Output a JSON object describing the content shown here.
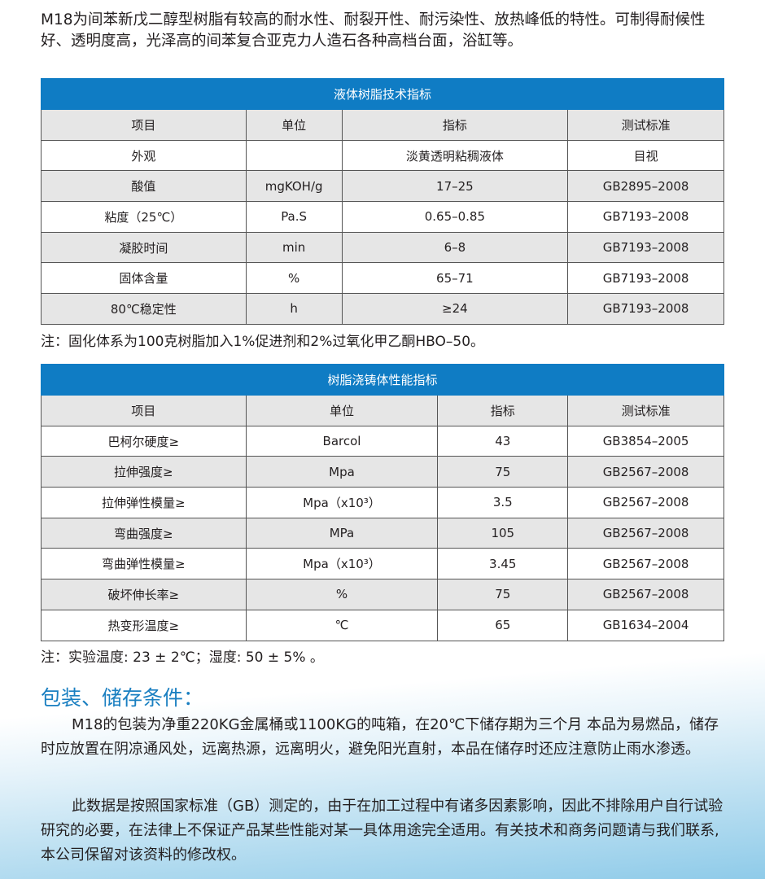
{
  "intro": "M18为间苯新戊二醇型树脂有较高的耐水性、耐裂开性、耐污染性、放热峰低的特性。可制得耐候性好、透明度高，光泽高的间苯复合亚克力人造石各种高档台面，浴缸等。",
  "table1": {
    "title": "液体树脂技术指标",
    "headers": [
      "项目",
      "单位",
      "指标",
      "测试标准"
    ],
    "rows": [
      [
        "外观",
        "",
        "淡黄透明粘稠液体",
        "目视"
      ],
      [
        "酸值",
        "mgKOH/g",
        "17–25",
        "GB2895–2008"
      ],
      [
        "粘度（25℃）",
        "Pa.S",
        "0.65–0.85",
        "GB7193–2008"
      ],
      [
        "凝胶时间",
        "min",
        "6–8",
        "GB7193–2008"
      ],
      [
        "固体含量",
        "%",
        "65–71",
        "GB7193–2008"
      ],
      [
        "80℃稳定性",
        "h",
        "≥24",
        "GB7193–2008"
      ]
    ]
  },
  "note1": "注：固化体系为100克树脂加入1%促进剂和2%过氧化甲乙酮HBO–50。",
  "table2": {
    "title": "树脂浇铸体性能指标",
    "headers": [
      "项目",
      "单位",
      "指标",
      "测试标准"
    ],
    "rows": [
      [
        "巴柯尔硬度≥",
        "Barcol",
        "43",
        "GB3854–2005"
      ],
      [
        "拉伸强度≥",
        "Mpa",
        "75",
        "GB2567–2008"
      ],
      [
        "拉伸弹性模量≥",
        "Mpa（x10³）",
        "3.5",
        "GB2567–2008"
      ],
      [
        "弯曲强度≥",
        "MPa",
        "105",
        "GB2567–2008"
      ],
      [
        "弯曲弹性模量≥",
        "Mpa（x10³）",
        "3.45",
        "GB2567–2008"
      ],
      [
        "破坏伸长率≥",
        "%",
        "75",
        "GB2567–2008"
      ],
      [
        "热变形温度≥",
        "℃",
        "65",
        "GB1634–2004"
      ]
    ]
  },
  "note2": "注：实验温度: 23 ± 2℃；湿度: 50 ± 5% 。",
  "section_title": "包装、储存条件：",
  "para1": "M18的包装为净重220KG金属桶或1100KG的吨箱，在20℃下储存期为三个月 本品为易燃品，储存时应放置在阴凉通风处，远离热源，远离明火，避免阳光直射，本品在储存时还应注意防止雨水渗透。",
  "para2": "此数据是按照国家标准（GB）测定的，由于在加工过程中有诸多因素影响，因此不排除用户自行试验研究的必要，在法律上不保证产品某些性能对某一具体用途完全适用。有关技术和商务问题请与我们联系,本公司保留对该资料的修改权。"
}
